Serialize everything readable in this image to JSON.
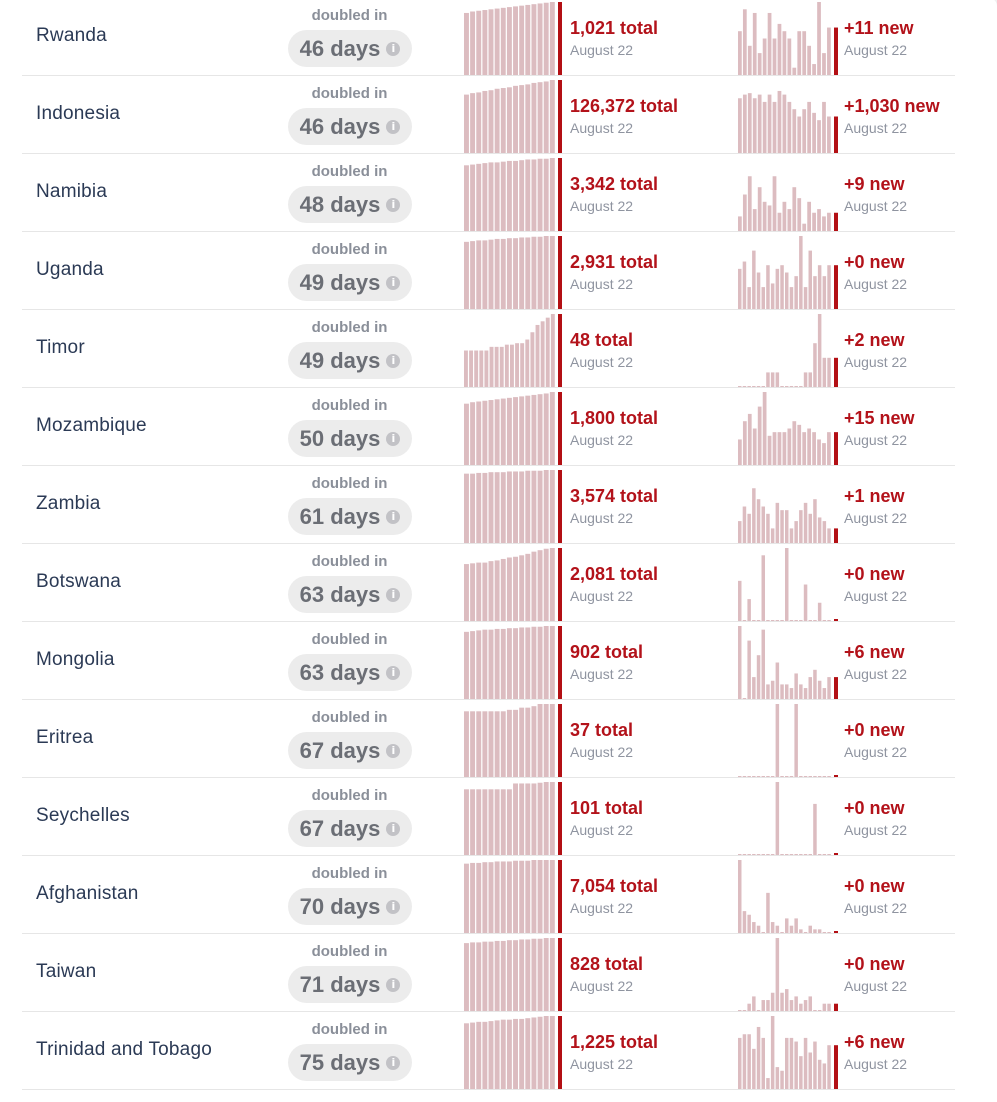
{
  "ui": {
    "doubled_label": "doubled in",
    "info_glyph": "i",
    "bar_color": "#dcbcc0",
    "accent_color": "#b30f14"
  },
  "rows": [
    {
      "country": "Rwanda",
      "days": "46 days",
      "total": "1,021 total",
      "new": "+11 new",
      "date": "August 22",
      "total_trend": [
        0.85,
        0.87,
        0.88,
        0.89,
        0.9,
        0.91,
        0.92,
        0.93,
        0.94,
        0.95,
        0.96,
        0.97,
        0.98,
        0.99,
        1.0
      ],
      "new_trend": [
        0.6,
        0.9,
        0.4,
        0.85,
        0.3,
        0.5,
        0.85,
        0.5,
        0.7,
        0.6,
        0.5,
        0.1,
        0.6,
        0.6,
        0.4,
        0.15,
        1.0,
        0.3,
        0.65
      ]
    },
    {
      "country": "Indonesia",
      "days": "46 days",
      "total": "126,372 total",
      "new": "+1,030 new",
      "date": "August 22",
      "total_trend": [
        0.8,
        0.82,
        0.83,
        0.85,
        0.86,
        0.88,
        0.89,
        0.9,
        0.92,
        0.93,
        0.94,
        0.96,
        0.97,
        0.98,
        1.0
      ],
      "new_trend": [
        0.75,
        0.8,
        0.82,
        0.75,
        0.8,
        0.7,
        0.8,
        0.7,
        0.85,
        0.8,
        0.7,
        0.6,
        0.5,
        0.6,
        0.7,
        0.55,
        0.45,
        0.7,
        0.5
      ]
    },
    {
      "country": "Namibia",
      "days": "48 days",
      "total": "3,342 total",
      "new": "+9 new",
      "date": "August 22",
      "total_trend": [
        0.9,
        0.91,
        0.92,
        0.93,
        0.94,
        0.94,
        0.95,
        0.96,
        0.96,
        0.97,
        0.98,
        0.98,
        0.99,
        0.99,
        1.0
      ],
      "new_trend": [
        0.2,
        0.5,
        0.75,
        0.3,
        0.6,
        0.4,
        0.35,
        0.75,
        0.25,
        0.4,
        0.3,
        0.6,
        0.45,
        0.1,
        0.4,
        0.25,
        0.3,
        0.2,
        0.25
      ]
    },
    {
      "country": "Uganda",
      "days": "49 days",
      "total": "2,931 total",
      "new": "+0 new",
      "date": "August 22",
      "total_trend": [
        0.92,
        0.93,
        0.94,
        0.94,
        0.95,
        0.96,
        0.96,
        0.97,
        0.97,
        0.98,
        0.98,
        0.99,
        0.99,
        1.0,
        1.0
      ],
      "new_trend": [
        0.55,
        0.65,
        0.3,
        0.8,
        0.5,
        0.3,
        0.6,
        0.35,
        0.55,
        0.6,
        0.5,
        0.3,
        0.45,
        1.0,
        0.3,
        0.8,
        0.45,
        0.6,
        0.45,
        0.6
      ]
    },
    {
      "country": "Timor",
      "days": "49 days",
      "total": "48 total",
      "new": "+2 new",
      "date": "August 22",
      "total_trend": [
        0.5,
        0.5,
        0.5,
        0.5,
        0.5,
        0.55,
        0.55,
        0.55,
        0.58,
        0.58,
        0.6,
        0.6,
        0.65,
        0.75,
        0.85,
        0.9,
        0.95,
        1.0
      ],
      "new_trend": [
        0,
        0,
        0,
        0,
        0,
        0,
        0.2,
        0.2,
        0.2,
        0,
        0,
        0,
        0,
        0,
        0.2,
        0.2,
        0.6,
        1.0,
        0.4,
        0.4
      ]
    },
    {
      "country": "Mozambique",
      "days": "50 days",
      "total": "1,800 total",
      "new": "+15 new",
      "date": "August 22",
      "total_trend": [
        0.84,
        0.86,
        0.87,
        0.88,
        0.89,
        0.9,
        0.91,
        0.92,
        0.93,
        0.94,
        0.95,
        0.96,
        0.97,
        0.98,
        1.0
      ],
      "new_trend": [
        0.35,
        0.6,
        0.7,
        0.5,
        0.8,
        1.0,
        0.4,
        0.45,
        0.45,
        0.45,
        0.5,
        0.6,
        0.55,
        0.45,
        0.5,
        0.45,
        0.35,
        0.3,
        0.45
      ]
    },
    {
      "country": "Zambia",
      "days": "61 days",
      "total": "3,574 total",
      "new": "+1 new",
      "date": "August 22",
      "total_trend": [
        0.95,
        0.95,
        0.96,
        0.96,
        0.97,
        0.97,
        0.97,
        0.98,
        0.98,
        0.98,
        0.99,
        0.99,
        0.99,
        1.0,
        1.0
      ],
      "new_trend": [
        0.3,
        0.5,
        0.4,
        0.75,
        0.6,
        0.5,
        0.4,
        0.2,
        0.55,
        0.45,
        0.45,
        0.2,
        0.3,
        0.45,
        0.55,
        0.4,
        0.6,
        0.35,
        0.3,
        0.2
      ]
    },
    {
      "country": "Botswana",
      "days": "63 days",
      "total": "2,081 total",
      "new": "+0 new",
      "date": "August 22",
      "total_trend": [
        0.78,
        0.79,
        0.8,
        0.8,
        0.82,
        0.83,
        0.85,
        0.87,
        0.88,
        0.9,
        0.92,
        0.95,
        0.97,
        0.99,
        1.0
      ],
      "new_trend": [
        0.55,
        0,
        0.3,
        0,
        0,
        0.9,
        0,
        0,
        0,
        0,
        1.0,
        0,
        0,
        0,
        0.5,
        0,
        0,
        0.25,
        0,
        0
      ]
    },
    {
      "country": "Mongolia",
      "days": "63 days",
      "total": "902 total",
      "new": "+6 new",
      "date": "August 22",
      "total_trend": [
        0.92,
        0.93,
        0.94,
        0.95,
        0.95,
        0.96,
        0.96,
        0.97,
        0.97,
        0.98,
        0.98,
        0.99,
        0.99,
        1.0,
        1.0
      ],
      "new_trend": [
        1.0,
        0,
        0.8,
        0.3,
        0.6,
        0.95,
        0.2,
        0.25,
        0.5,
        0.2,
        0.2,
        0.15,
        0.35,
        0.2,
        0.15,
        0.3,
        0.4,
        0.25,
        0.15,
        0.3
      ]
    },
    {
      "country": "Eritrea",
      "days": "67 days",
      "total": "37 total",
      "new": "+0 new",
      "date": "August 22",
      "total_trend": [
        0.9,
        0.9,
        0.9,
        0.9,
        0.9,
        0.9,
        0.9,
        0.92,
        0.92,
        0.95,
        0.95,
        0.97,
        1.0,
        1.0,
        1.0
      ],
      "new_trend": [
        0,
        0,
        0,
        0,
        0,
        0,
        0,
        0,
        1.0,
        0,
        0,
        0,
        1.0,
        0,
        0,
        0,
        0,
        0,
        0,
        0
      ]
    },
    {
      "country": "Seychelles",
      "days": "67 days",
      "total": "101 total",
      "new": "+0 new",
      "date": "August 22",
      "total_trend": [
        0.9,
        0.9,
        0.9,
        0.9,
        0.9,
        0.9,
        0.9,
        0.9,
        0.98,
        0.98,
        0.98,
        0.98,
        0.99,
        1.0,
        1.0
      ],
      "new_trend": [
        0,
        0,
        0,
        0,
        0,
        0,
        0,
        0,
        1.0,
        0,
        0,
        0,
        0,
        0,
        0,
        0,
        0.7,
        0,
        0,
        0
      ]
    },
    {
      "country": "Afghanistan",
      "days": "70 days",
      "total": "7,054 total",
      "new": "+0 new",
      "date": "August 22",
      "total_trend": [
        0.95,
        0.96,
        0.96,
        0.97,
        0.97,
        0.98,
        0.98,
        0.98,
        0.99,
        0.99,
        0.99,
        1.0,
        1.0,
        1.0,
        1.0
      ],
      "new_trend": [
        1.0,
        0.3,
        0.25,
        0.15,
        0.1,
        0,
        0.55,
        0.15,
        0.1,
        0,
        0.2,
        0.1,
        0.2,
        0.05,
        0,
        0.1,
        0.05,
        0.05,
        0,
        0
      ]
    },
    {
      "country": "Taiwan",
      "days": "71 days",
      "total": "828 total",
      "new": "+0 new",
      "date": "August 22",
      "total_trend": [
        0.93,
        0.94,
        0.94,
        0.95,
        0.95,
        0.96,
        0.96,
        0.97,
        0.97,
        0.98,
        0.98,
        0.99,
        0.99,
        1.0,
        1.0
      ],
      "new_trend": [
        0,
        0,
        0.1,
        0.2,
        0,
        0.15,
        0.15,
        0.25,
        1.0,
        0.25,
        0.3,
        0.15,
        0.2,
        0.1,
        0.15,
        0.2,
        0,
        0,
        0.1,
        0.1
      ]
    },
    {
      "country": "Trinidad and Tobago",
      "days": "75 days",
      "total": "1,225 total",
      "new": "+6 new",
      "date": "August 22",
      "total_trend": [
        0.9,
        0.91,
        0.92,
        0.92,
        0.93,
        0.94,
        0.95,
        0.95,
        0.96,
        0.96,
        0.97,
        0.98,
        0.99,
        1.0,
        1.0
      ],
      "new_trend": [
        0.7,
        0.75,
        0.75,
        0.55,
        0.85,
        0.7,
        0.15,
        1.0,
        0.3,
        0.25,
        0.7,
        0.7,
        0.65,
        0.45,
        0.7,
        0.5,
        0.65,
        0.4,
        0.35,
        0.6
      ]
    }
  ]
}
